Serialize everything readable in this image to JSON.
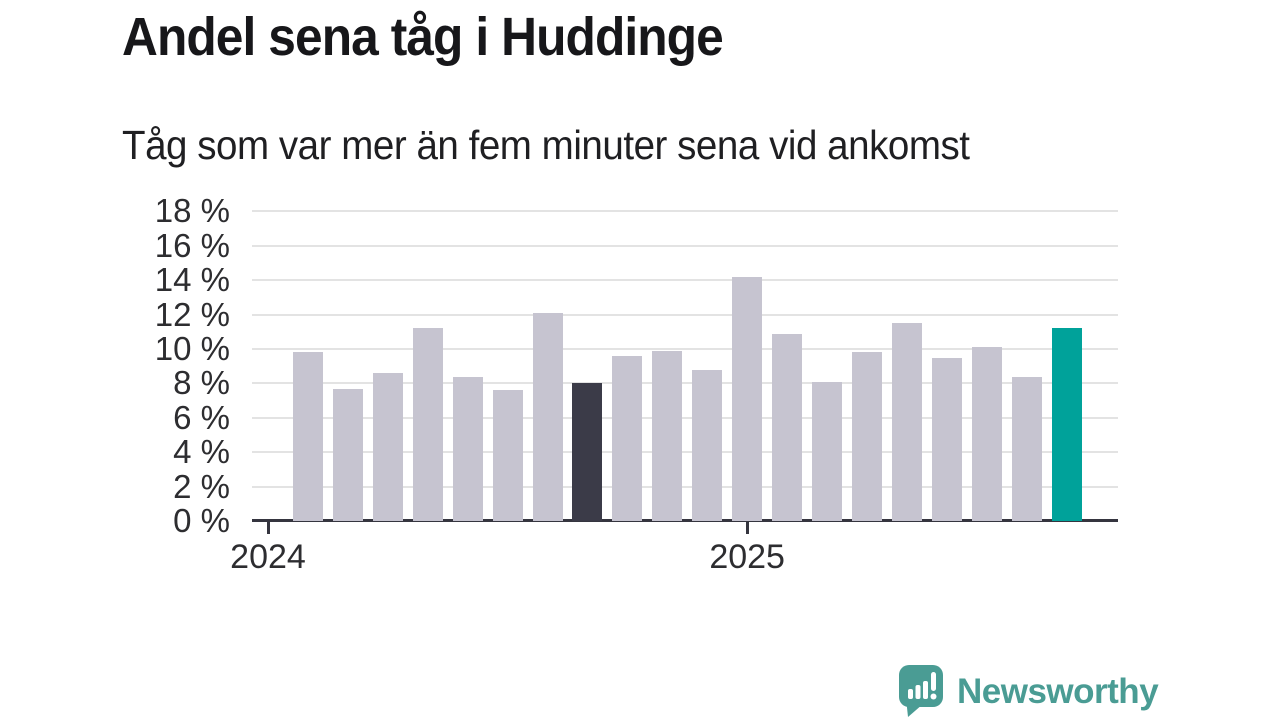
{
  "title": "Andel sena tåg i Huddinge",
  "subtitle": "Tåg som var mer än fem minuter sena vid ankomst",
  "chart_data": {
    "type": "bar",
    "title": "Andel sena tåg i Huddinge",
    "subtitle": "Tåg som var mer än fem minuter sena vid ankomst",
    "unit": "%",
    "values": [
      9.8,
      7.7,
      8.6,
      11.2,
      8.4,
      7.6,
      12.1,
      8.0,
      9.6,
      9.9,
      8.8,
      14.2,
      10.9,
      8.1,
      9.8,
      11.5,
      9.5,
      10.1,
      8.4,
      11.2
    ],
    "highlight_dark_index": 7,
    "highlight_accent_index": 19,
    "ylim": [
      0,
      18
    ],
    "y_ticks": [
      "0 %",
      "2 %",
      "4 %",
      "6 %",
      "8 %",
      "10 %",
      "12 %",
      "14 %",
      "16 %",
      "18 %"
    ],
    "x_ticks": [
      {
        "label": "2024",
        "slot": 0
      },
      {
        "label": "2025",
        "slot": 12
      }
    ],
    "slots_total": 21,
    "bars_start_slot": 1,
    "grid": true,
    "colors": {
      "bar_default": "#c6c4d0",
      "bar_dark": "#3b3b48",
      "bar_accent": "#00a29a",
      "axis": "#35353f",
      "gridline": "#e3e3e3"
    }
  },
  "branding": {
    "name": "Newsworthy",
    "color": "#4a9c94",
    "icon": "newsworthy-speech-bubble-barchart-icon"
  }
}
